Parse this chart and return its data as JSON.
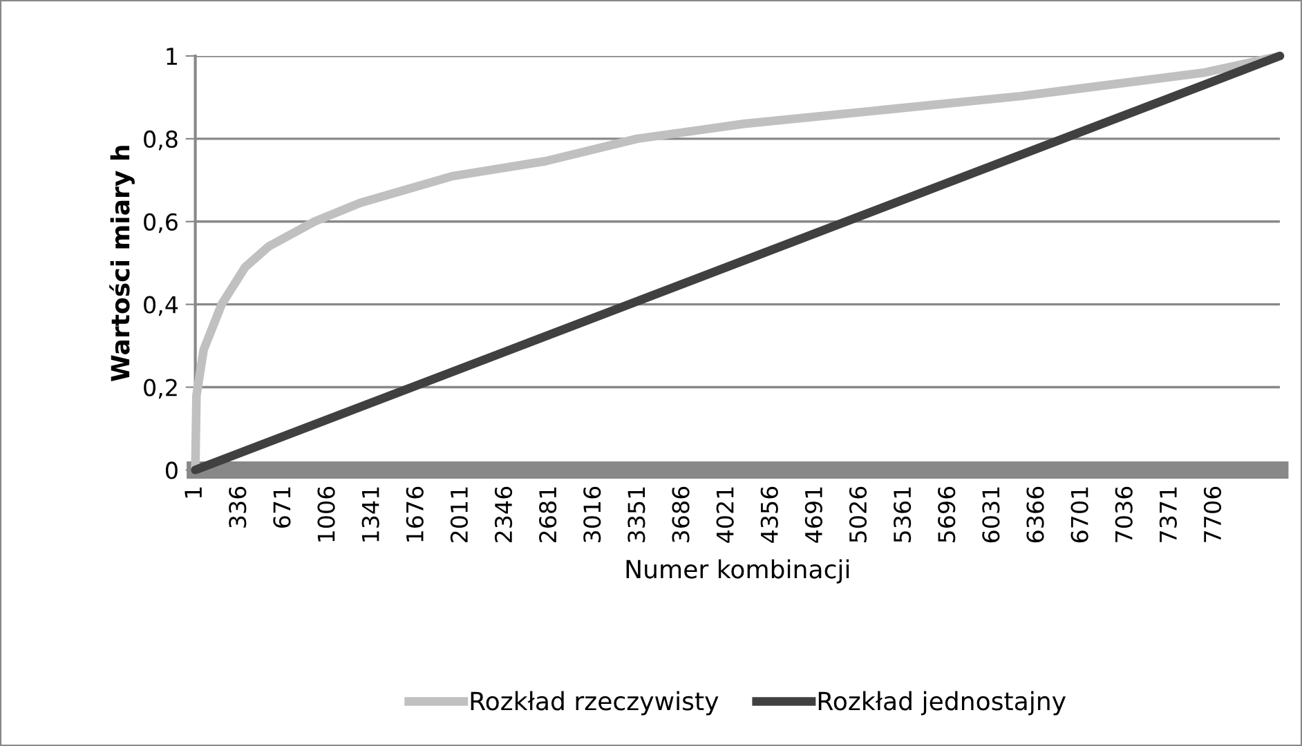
{
  "chart_data": {
    "type": "line",
    "xlabel": "Numer kombinacji",
    "ylabel": "Wartości miary h",
    "xlim": [
      1,
      8200
    ],
    "xticks": [
      1,
      336,
      671,
      1006,
      1341,
      1676,
      2011,
      2346,
      2681,
      3016,
      3351,
      3686,
      4021,
      4356,
      4691,
      5026,
      5361,
      5696,
      6031,
      6366,
      6701,
      7036,
      7371,
      7706
    ],
    "ylim": [
      0,
      1
    ],
    "yticks": [
      {
        "value": 0,
        "label": "0"
      },
      {
        "value": 0.2,
        "label": "0,2"
      },
      {
        "value": 0.4,
        "label": "0,4"
      },
      {
        "value": 0.6,
        "label": "0,6"
      },
      {
        "value": 0.8,
        "label": "0,8"
      },
      {
        "value": 1,
        "label": "1"
      }
    ],
    "grid": "y",
    "legend": "bottom",
    "marker": "none",
    "line_style": "solid",
    "series": [
      {
        "name": "Rozkład rzeczywisty",
        "color": "#c0c0c0",
        "x": [
          1,
          10,
          64,
          200,
          378,
          556,
          902,
          1247,
          1949,
          2650,
          3341,
          4148,
          6242,
          7634,
          8200
        ],
        "values": [
          0,
          0.18,
          0.29,
          0.4,
          0.49,
          0.54,
          0.6,
          0.645,
          0.71,
          0.746,
          0.8,
          0.836,
          0.903,
          0.96,
          1
        ]
      },
      {
        "name": "Rozkład jednostajny",
        "color": "#404040",
        "x": [
          1,
          8200
        ],
        "values": [
          0,
          1
        ]
      }
    ]
  }
}
